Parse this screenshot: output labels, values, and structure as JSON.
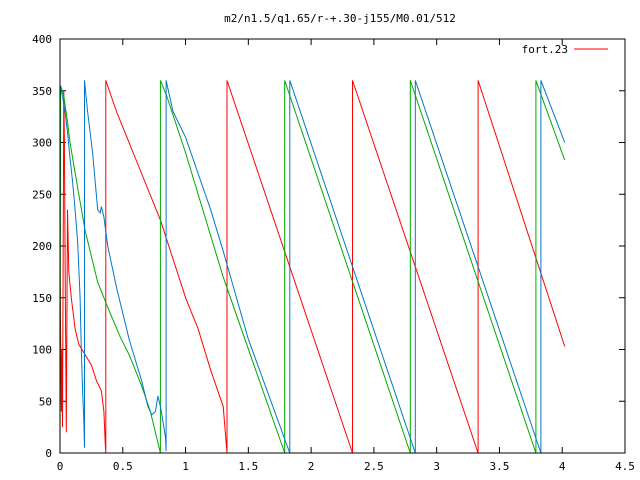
{
  "chart_data": {
    "type": "line",
    "title": "m2/n1.5/q1.65/r-+.30-j155/M0.01/512",
    "xlabel": "",
    "ylabel": "",
    "xlim": [
      0,
      4.5
    ],
    "ylim": [
      0,
      400
    ],
    "x_ticks": [
      "0",
      "0.5",
      "1",
      "1.5",
      "2",
      "2.5",
      "3",
      "3.5",
      "4",
      "4.5"
    ],
    "y_ticks": [
      "0",
      "50",
      "100",
      "150",
      "200",
      "250",
      "300",
      "350",
      "400"
    ],
    "grid": false,
    "legend_position": "top-right",
    "series": [
      {
        "name": "fort.23",
        "color": "#ff0000",
        "points": [
          [
            0.0,
            180
          ],
          [
            0.01,
            40
          ],
          [
            0.015,
            100
          ],
          [
            0.02,
            25
          ],
          [
            0.03,
            350
          ],
          [
            0.035,
            300
          ],
          [
            0.04,
            200
          ],
          [
            0.05,
            20
          ],
          [
            0.06,
            235
          ],
          [
            0.07,
            175
          ],
          [
            0.09,
            150
          ],
          [
            0.12,
            120
          ],
          [
            0.15,
            105
          ],
          [
            0.2,
            95
          ],
          [
            0.25,
            85
          ],
          [
            0.29,
            70
          ],
          [
            0.33,
            60
          ],
          [
            0.35,
            40
          ],
          [
            0.36,
            10
          ],
          [
            0.365,
            0
          ],
          [
            0.365,
            360
          ],
          [
            0.45,
            330
          ],
          [
            0.6,
            285
          ],
          [
            0.8,
            225
          ],
          [
            1.0,
            150
          ],
          [
            1.1,
            120
          ],
          [
            1.2,
            80
          ],
          [
            1.3,
            45
          ],
          [
            1.33,
            0
          ],
          [
            1.33,
            360
          ],
          [
            2.33,
            0
          ],
          [
            2.33,
            360
          ],
          [
            3.33,
            0
          ],
          [
            3.33,
            360
          ],
          [
            4.02,
            103
          ]
        ]
      },
      {
        "name": "",
        "color": "#00aa00",
        "points": [
          [
            0.0,
            0
          ],
          [
            0.005,
            355
          ],
          [
            0.03,
            345
          ],
          [
            0.06,
            320
          ],
          [
            0.08,
            300
          ],
          [
            0.1,
            285
          ],
          [
            0.15,
            250
          ],
          [
            0.2,
            215
          ],
          [
            0.3,
            165
          ],
          [
            0.4,
            135
          ],
          [
            0.48,
            112
          ],
          [
            0.55,
            95
          ],
          [
            0.65,
            65
          ],
          [
            0.72,
            40
          ],
          [
            0.8,
            0
          ],
          [
            0.8,
            360
          ],
          [
            0.85,
            345
          ],
          [
            1.0,
            290
          ],
          [
            1.3,
            170
          ],
          [
            1.79,
            0
          ],
          [
            1.79,
            360
          ],
          [
            2.79,
            0
          ],
          [
            2.79,
            360
          ],
          [
            3.79,
            0
          ],
          [
            3.79,
            360
          ],
          [
            4.02,
            283
          ]
        ]
      },
      {
        "name": "",
        "color": "#0077cc",
        "points": [
          [
            0.0,
            355
          ],
          [
            0.02,
            345
          ],
          [
            0.04,
            330
          ],
          [
            0.06,
            310
          ],
          [
            0.08,
            285
          ],
          [
            0.1,
            262
          ],
          [
            0.12,
            235
          ],
          [
            0.14,
            205
          ],
          [
            0.16,
            150
          ],
          [
            0.17,
            100
          ],
          [
            0.18,
            60
          ],
          [
            0.19,
            30
          ],
          [
            0.195,
            5
          ],
          [
            0.195,
            360
          ],
          [
            0.22,
            330
          ],
          [
            0.26,
            290
          ],
          [
            0.3,
            235
          ],
          [
            0.32,
            232
          ],
          [
            0.33,
            238
          ],
          [
            0.35,
            228
          ],
          [
            0.38,
            200
          ],
          [
            0.45,
            160
          ],
          [
            0.5,
            135
          ],
          [
            0.55,
            110
          ],
          [
            0.6,
            90
          ],
          [
            0.65,
            70
          ],
          [
            0.7,
            45
          ],
          [
            0.73,
            37
          ],
          [
            0.76,
            40
          ],
          [
            0.78,
            55
          ],
          [
            0.8,
            45
          ],
          [
            0.82,
            30
          ],
          [
            0.84,
            15
          ],
          [
            0.845,
            2
          ],
          [
            0.845,
            360
          ],
          [
            0.9,
            330
          ],
          [
            1.0,
            305
          ],
          [
            1.1,
            270
          ],
          [
            1.2,
            235
          ],
          [
            1.3,
            195
          ],
          [
            1.5,
            110
          ],
          [
            1.83,
            0
          ],
          [
            1.83,
            360
          ],
          [
            2.83,
            0
          ],
          [
            2.83,
            360
          ],
          [
            3.83,
            0
          ],
          [
            3.83,
            360
          ],
          [
            4.02,
            300
          ]
        ]
      }
    ]
  }
}
